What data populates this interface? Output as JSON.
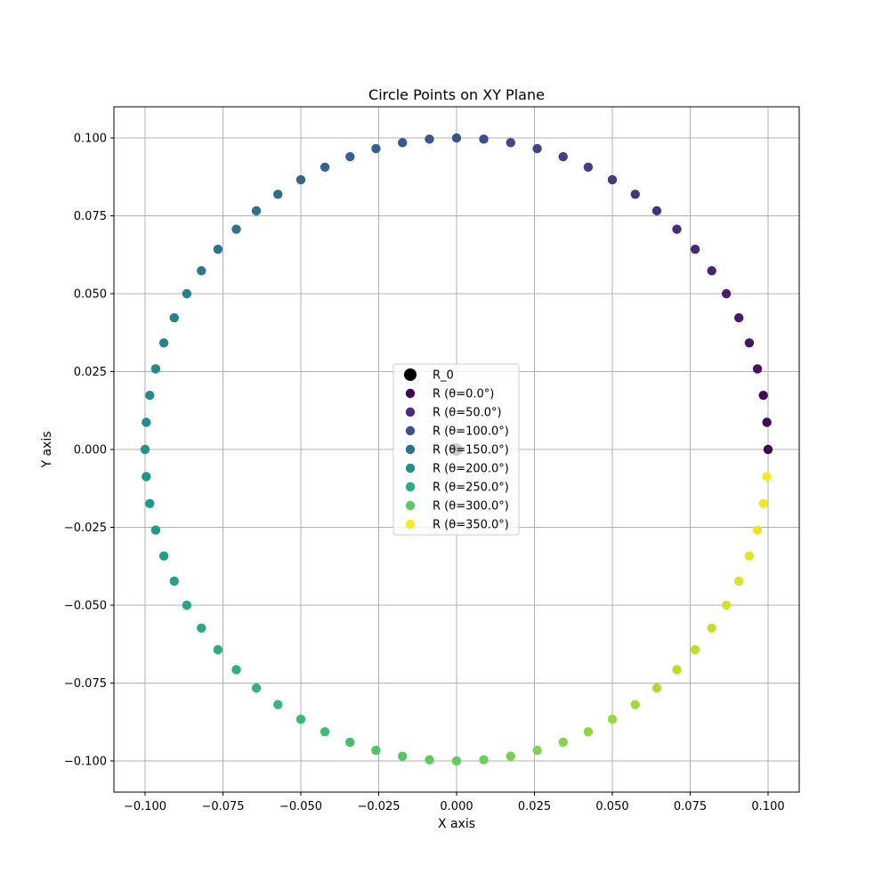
{
  "chart_data": {
    "type": "scatter",
    "title": "Circle Points on XY Plane",
    "xlabel": "X axis",
    "ylabel": "Y axis",
    "xlim": [
      -0.11,
      0.11
    ],
    "ylim": [
      -0.11,
      0.11
    ],
    "xticks": [
      -0.1,
      -0.075,
      -0.05,
      -0.025,
      0.0,
      0.025,
      0.05,
      0.075,
      0.1
    ],
    "xtick_labels": [
      "−0.100",
      "−0.075",
      "−0.050",
      "−0.025",
      "0.000",
      "0.025",
      "0.050",
      "0.075",
      "0.100"
    ],
    "yticks": [
      -0.1,
      -0.075,
      -0.05,
      -0.025,
      0.0,
      0.025,
      0.05,
      0.075,
      0.1
    ],
    "ytick_labels": [
      "−0.100",
      "−0.075",
      "−0.050",
      "−0.025",
      "0.000",
      "0.025",
      "0.050",
      "0.075",
      "0.100"
    ],
    "grid": true,
    "legend_position": "center",
    "radius": 0.1,
    "angle_step_deg": 5,
    "color_map": "viridis",
    "reference_point": {
      "name": "R_0",
      "x": 0.0,
      "y": 0.0,
      "color": "#000000"
    },
    "legend": [
      {
        "label": "R_0",
        "color": "#000000"
      },
      {
        "label": "R (θ=0.0°)",
        "color": "#440154"
      },
      {
        "label": "R (θ=50.0°)",
        "color": "#472d7b"
      },
      {
        "label": "R (θ=100.0°)",
        "color": "#3b528b"
      },
      {
        "label": "R (θ=150.0°)",
        "color": "#2c728e"
      },
      {
        "label": "R (θ=200.0°)",
        "color": "#21918c"
      },
      {
        "label": "R (θ=250.0°)",
        "color": "#28ae80"
      },
      {
        "label": "R (θ=300.0°)",
        "color": "#5ec962"
      },
      {
        "label": "R (θ=350.0°)",
        "color": "#fde725"
      }
    ],
    "viridis_stops": [
      "#440154",
      "#482878",
      "#3e4989",
      "#31688e",
      "#26828e",
      "#1f9e89",
      "#35b779",
      "#6ece58",
      "#b5de2b",
      "#fde725"
    ]
  }
}
